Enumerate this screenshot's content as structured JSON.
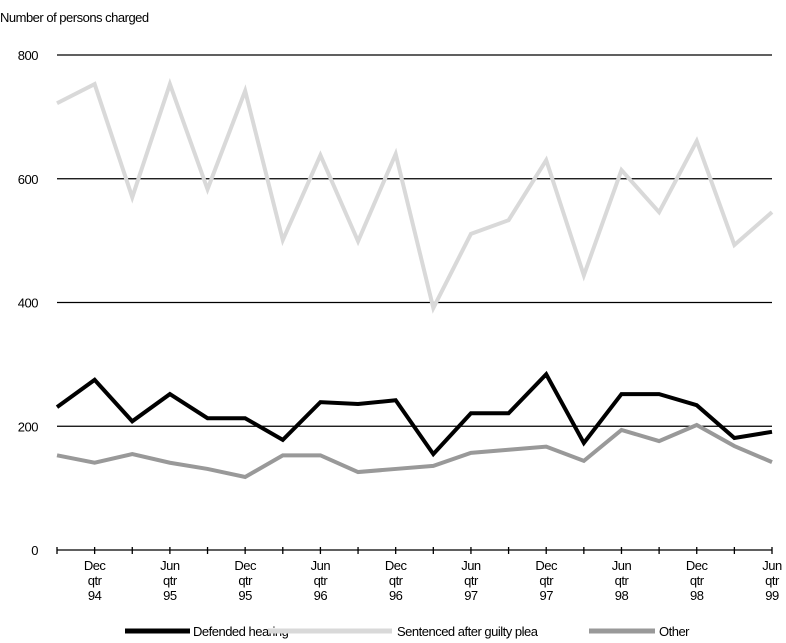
{
  "chart_data": {
    "type": "line",
    "y_label": "Number of persons charged",
    "categories": [
      null,
      "Dec qtr 94",
      null,
      "Jun qtr 95",
      null,
      "Dec qtr 95",
      null,
      "Jun qtr 96",
      null,
      "Dec qtr 96",
      null,
      "Jun qtr 97",
      null,
      "Dec qtr 97",
      null,
      "Jun qtr 98",
      null,
      "Dec qtr 98",
      null,
      "Jun qtr 99"
    ],
    "series": [
      {
        "name": "Defended hearing",
        "color": "#000000",
        "values": [
          231,
          275,
          208,
          252,
          213,
          213,
          178,
          239,
          236,
          242,
          155,
          221,
          221,
          284,
          173,
          252,
          252,
          234,
          181,
          191
        ]
      },
      {
        "name": "Sentenced after guilty plea",
        "color": "#d9d9d9",
        "values": [
          722,
          753,
          570,
          753,
          583,
          742,
          501,
          638,
          499,
          640,
          391,
          511,
          533,
          630,
          444,
          614,
          546,
          661,
          493,
          546
        ]
      },
      {
        "name": "Other",
        "color": "#999999",
        "values": [
          153,
          141,
          155,
          141,
          131,
          118,
          153,
          153,
          126,
          131,
          136,
          157,
          162,
          167,
          144,
          194,
          176,
          202,
          168,
          142
        ]
      }
    ],
    "ylim": [
      0,
      800
    ],
    "yticks": [
      0,
      200,
      400,
      600,
      800
    ],
    "grid": true,
    "legend": "bottom"
  }
}
